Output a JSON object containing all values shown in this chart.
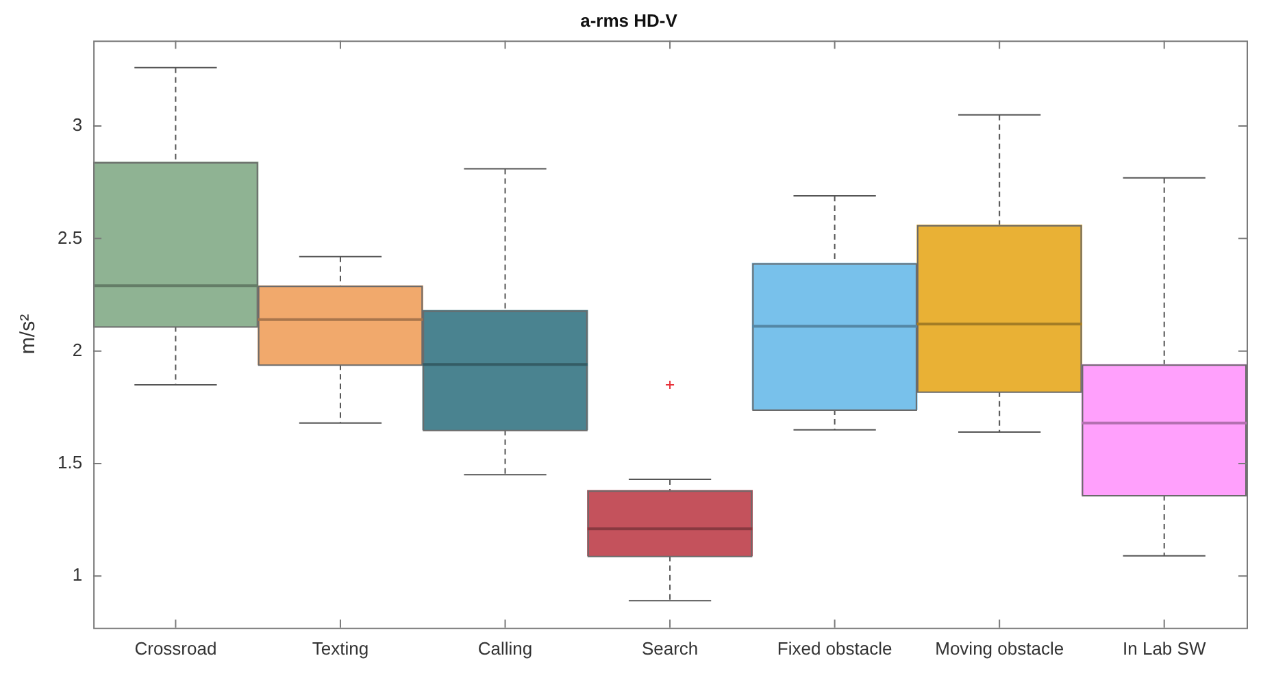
{
  "chart_data": {
    "type": "box",
    "title": "a-rms HD-V",
    "ylabel": "m/s²",
    "categories": [
      "Crossroad",
      "Texting",
      "Calling",
      "Search",
      "Fixed obstacle",
      "Moving obstacle",
      "In Lab SW"
    ],
    "colors": [
      "#8fb393",
      "#f1a96c",
      "#4a8390",
      "#c4525c",
      "#78c1eb",
      "#e9b135",
      "#ffa0fc"
    ],
    "boxes": [
      {
        "low": 1.85,
        "q1": 2.11,
        "median": 2.29,
        "q3": 2.84,
        "high": 3.26
      },
      {
        "low": 1.68,
        "q1": 1.94,
        "median": 2.14,
        "q3": 2.29,
        "high": 2.42
      },
      {
        "low": 1.45,
        "q1": 1.65,
        "median": 1.94,
        "q3": 2.18,
        "high": 2.81
      },
      {
        "low": 0.89,
        "q1": 1.09,
        "median": 1.21,
        "q3": 1.38,
        "high": 1.43,
        "outliers": [
          1.85
        ]
      },
      {
        "low": 1.65,
        "q1": 1.74,
        "median": 2.11,
        "q3": 2.39,
        "high": 2.69
      },
      {
        "low": 1.64,
        "q1": 1.82,
        "median": 2.12,
        "q3": 2.56,
        "high": 3.05
      },
      {
        "low": 1.09,
        "q1": 1.36,
        "median": 1.68,
        "q3": 1.94,
        "high": 2.77
      }
    ],
    "ylim": [
      0.77,
      3.38
    ],
    "yticks": [
      1,
      1.5,
      2,
      2.5,
      3
    ],
    "grid": false,
    "legend": false
  }
}
